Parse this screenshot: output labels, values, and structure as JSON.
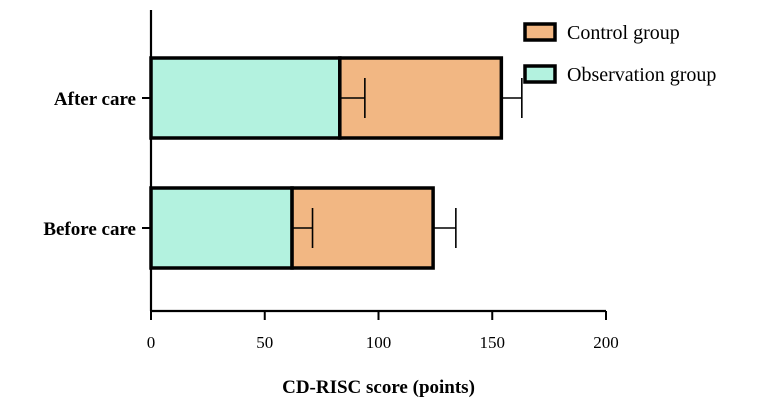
{
  "chart_data": {
    "type": "bar",
    "orientation": "horizontal",
    "stacked": true,
    "categories": [
      "After care",
      "Before care"
    ],
    "series": [
      {
        "name": "Observation group",
        "color": "#b3f2df",
        "values": [
          83,
          62
        ],
        "error": [
          11,
          9
        ]
      },
      {
        "name": "Control group",
        "color": "#f2b783",
        "values": [
          71,
          62
        ],
        "error": [
          9,
          10
        ]
      }
    ],
    "xlabel": "CD-RISC score (points)",
    "ylabel": "",
    "xlim": [
      0,
      200
    ],
    "xticks": [
      0,
      50,
      100,
      150,
      200
    ],
    "xtick_labels": [
      "0",
      "50",
      "100",
      "150",
      "200"
    ],
    "legend_placement": "top-right",
    "grid": false
  }
}
